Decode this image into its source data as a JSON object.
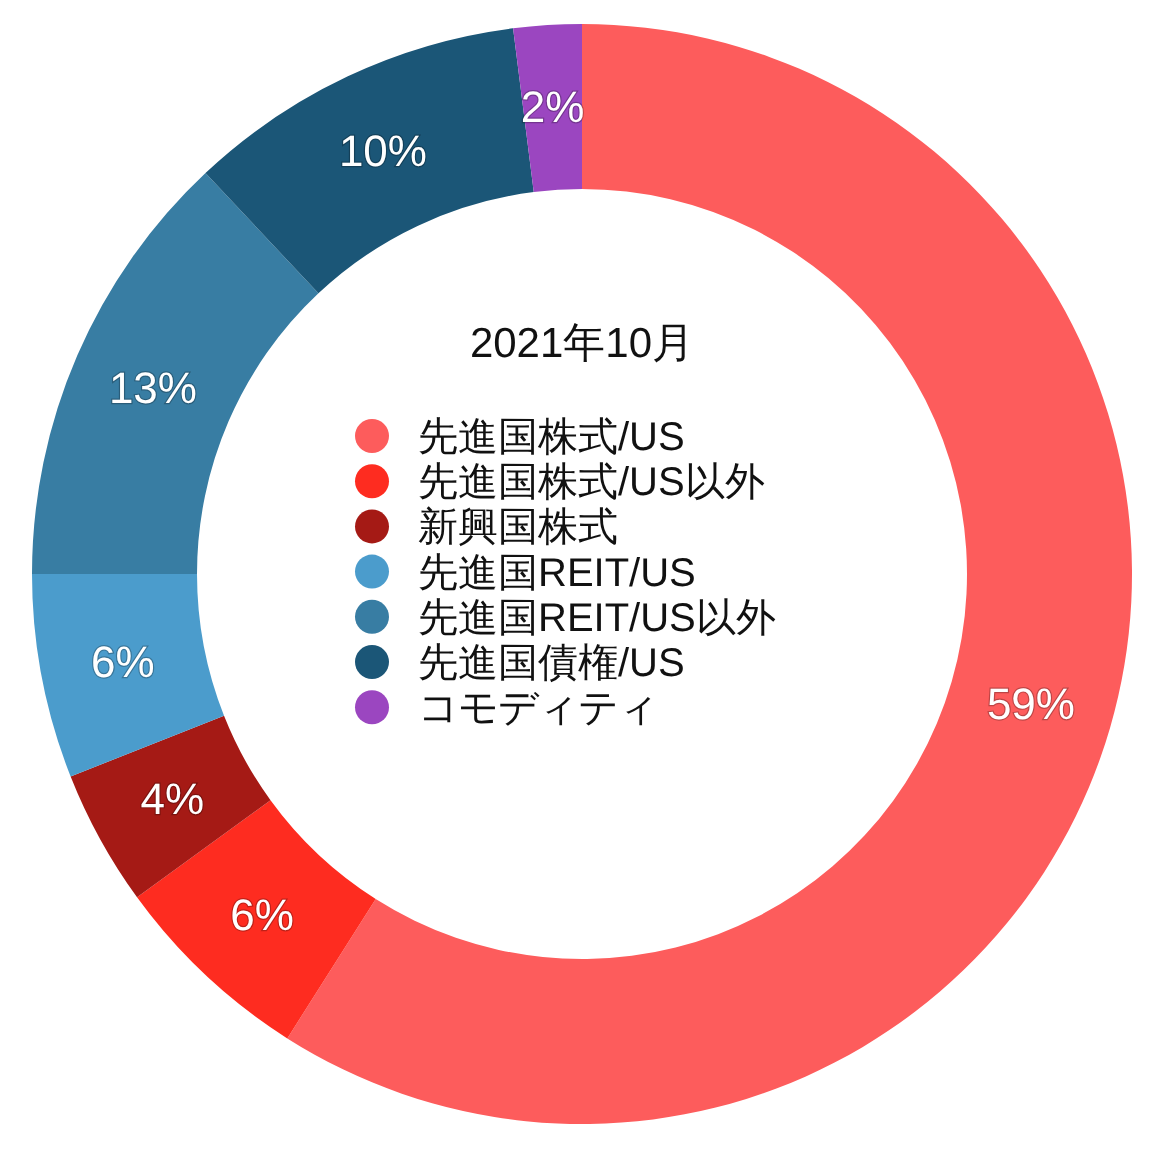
{
  "chart_data": {
    "type": "donut",
    "title": "2021年10月",
    "categories": [
      "先進国株式/US",
      "先進国株式/US以外",
      "新興国株式",
      "先進国REIT/US",
      "先進国REIT/US以外",
      "先進国債権/US",
      "コモディティ"
    ],
    "values": [
      59,
      6,
      4,
      6,
      13,
      10,
      2
    ],
    "colors": [
      "#fd5c5c",
      "#fe2c20",
      "#a51a15",
      "#4b9ccc",
      "#387da3",
      "#1b5677",
      "#9b46c0"
    ],
    "value_labels": [
      "59%",
      "6%",
      "4%",
      "6%",
      "13%",
      "10%",
      "2%"
    ],
    "legend": "center"
  }
}
